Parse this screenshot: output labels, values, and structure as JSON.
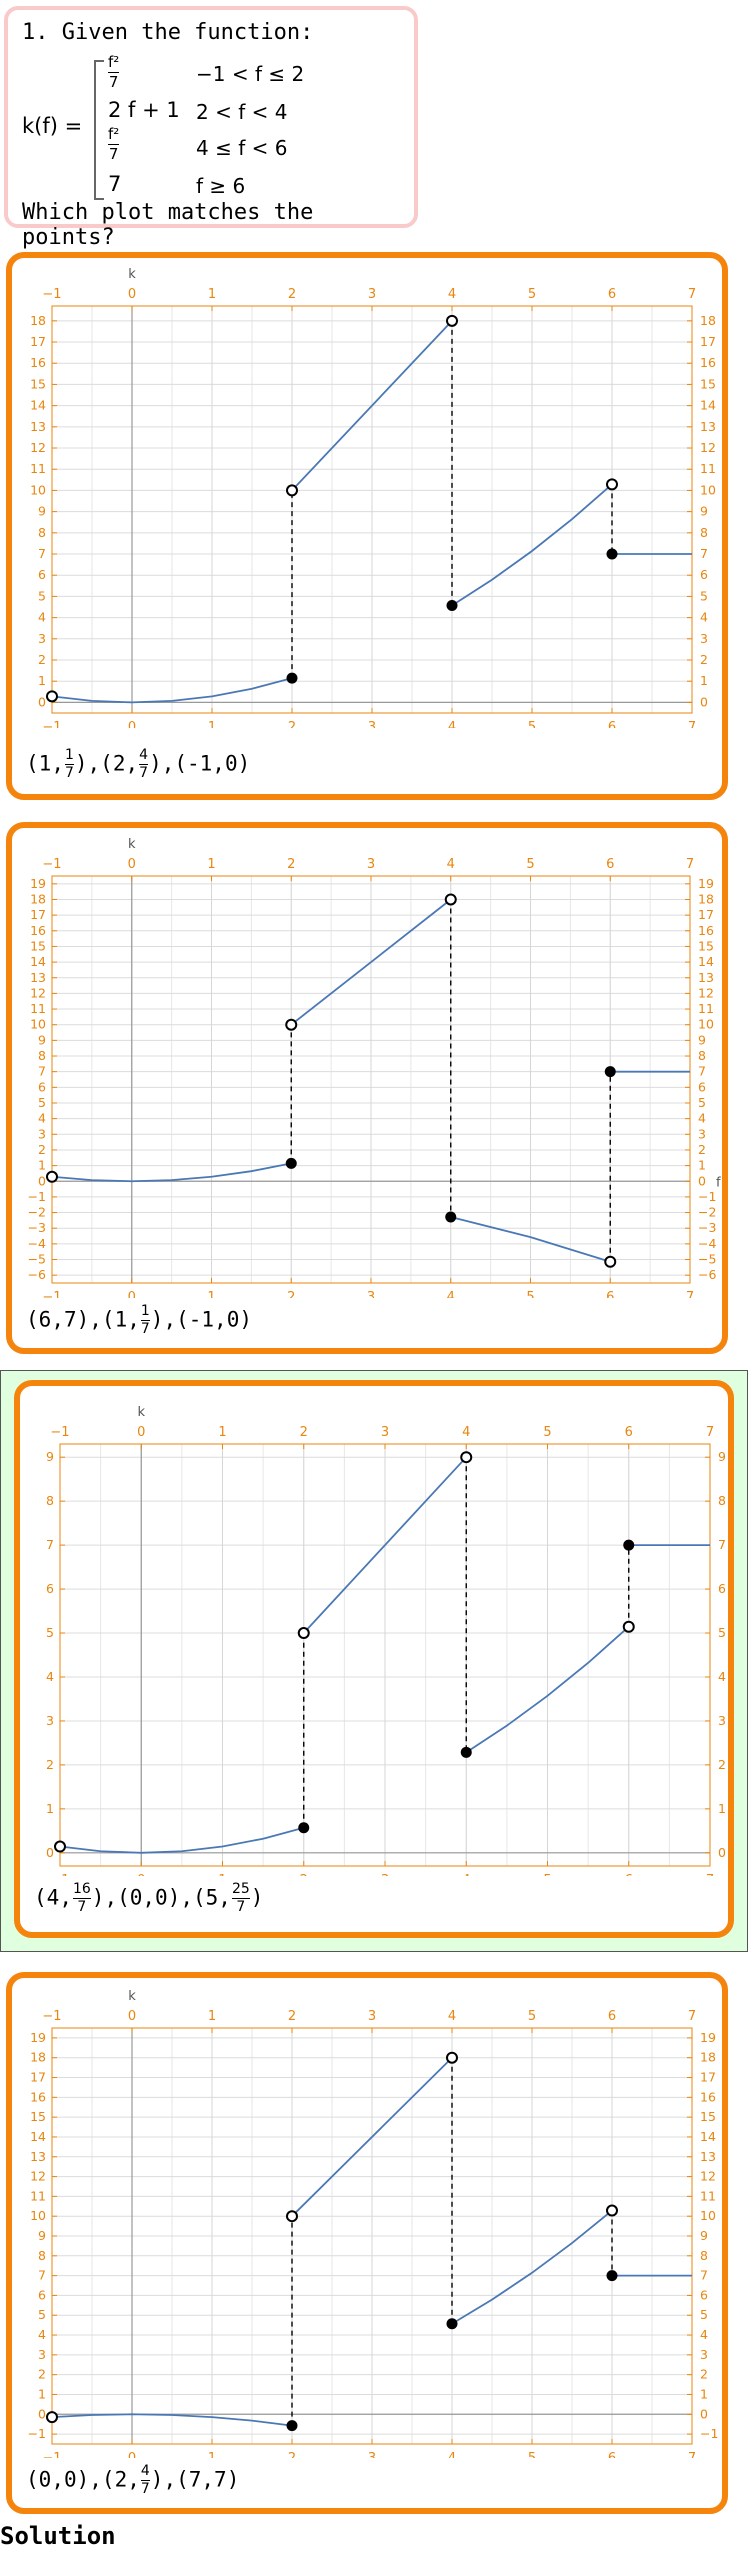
{
  "question": {
    "title": "1. Given the function:",
    "lhs": "k(f) =",
    "cases": [
      {
        "expr_num": "f²",
        "expr_den": "7",
        "cond": "−1 < f ≤ 2"
      },
      {
        "expr": "2 f + 1",
        "cond": "2 < f < 4"
      },
      {
        "expr_num": "f²",
        "expr_den": "7",
        "cond": "4 ≤ f < 6"
      },
      {
        "expr": "7",
        "cond": "f ≥ 6"
      }
    ],
    "prompt": "Which plot matches the points?"
  },
  "solution_label": "Solution",
  "options": [
    {
      "points_label": [
        [
          "1",
          "1",
          "7"
        ],
        [
          "2",
          "4",
          "7"
        ],
        [
          "-1",
          "0",
          null
        ]
      ],
      "correct": false
    },
    {
      "points_label": [
        [
          "6",
          "7",
          null
        ],
        [
          "1",
          "1",
          "7"
        ],
        [
          "-1",
          "0",
          null
        ]
      ],
      "correct": false
    },
    {
      "points_label": [
        [
          "4",
          "16",
          "7"
        ],
        [
          "0",
          "0",
          null
        ],
        [
          "5",
          "25",
          "7"
        ]
      ],
      "correct": true
    },
    {
      "points_label": [
        [
          "0",
          "0",
          null
        ],
        [
          "2",
          "4",
          "7"
        ],
        [
          "7",
          "7",
          null
        ]
      ],
      "correct": false
    }
  ],
  "chart_data": [
    {
      "type": "line",
      "xlabel": "",
      "ylabel": "k",
      "xlim": [
        -1,
        7
      ],
      "ylim": [
        -0.5,
        18.7
      ],
      "xticks": [
        -1,
        0,
        1,
        2,
        3,
        4,
        5,
        6,
        7
      ],
      "yticks": [
        0,
        1,
        2,
        3,
        4,
        5,
        6,
        7,
        8,
        9,
        10,
        11,
        12,
        13,
        14,
        15,
        16,
        17,
        18
      ],
      "segments": [
        {
          "kind": "curve",
          "x": [
            -1,
            -0.5,
            0,
            0.5,
            1,
            1.5,
            2
          ],
          "y": [
            0.286,
            0.071,
            0,
            0.071,
            0.286,
            0.643,
            1.143
          ]
        },
        {
          "kind": "line",
          "x": [
            2,
            4
          ],
          "y": [
            10,
            18
          ]
        },
        {
          "kind": "curve",
          "x": [
            4,
            4.5,
            5,
            5.5,
            6
          ],
          "y": [
            4.571,
            5.786,
            7.143,
            8.643,
            10.286
          ]
        },
        {
          "kind": "line",
          "x": [
            6,
            7
          ],
          "y": [
            7,
            7
          ]
        }
      ],
      "open_points": [
        [
          -1,
          0.286
        ],
        [
          4,
          18
        ],
        [
          6,
          10.286
        ],
        [
          2,
          10
        ]
      ],
      "closed_points": [
        [
          2,
          1.143
        ],
        [
          4,
          4.571
        ],
        [
          6,
          7
        ]
      ],
      "dashed": [
        [
          [
            2,
            1.143
          ],
          [
            2,
            10
          ]
        ],
        [
          [
            4,
            18
          ],
          [
            4,
            4.571
          ]
        ],
        [
          [
            6,
            10.286
          ],
          [
            6,
            7
          ]
        ]
      ]
    },
    {
      "type": "line",
      "xlabel": "f",
      "ylabel": "k",
      "xlim": [
        -1,
        7
      ],
      "ylim": [
        -6.5,
        19.5
      ],
      "xticks": [
        -1,
        0,
        1,
        2,
        3,
        4,
        5,
        6,
        7
      ],
      "yticks": [
        -6,
        -5,
        -4,
        -3,
        -2,
        -1,
        0,
        1,
        2,
        3,
        4,
        5,
        6,
        7,
        8,
        9,
        10,
        11,
        12,
        13,
        14,
        15,
        16,
        17,
        18,
        19
      ],
      "segments": [
        {
          "kind": "curve",
          "x": [
            -1,
            -0.5,
            0,
            0.5,
            1,
            1.5,
            2
          ],
          "y": [
            0.286,
            0.071,
            0,
            0.071,
            0.286,
            0.643,
            1.143
          ]
        },
        {
          "kind": "line",
          "x": [
            2,
            4
          ],
          "y": [
            10,
            18
          ]
        },
        {
          "kind": "curve",
          "x": [
            4,
            5,
            6
          ],
          "y": [
            -2.286,
            -3.571,
            -5.143
          ]
        },
        {
          "kind": "line",
          "x": [
            6,
            7
          ],
          "y": [
            7,
            7
          ]
        }
      ],
      "open_points": [
        [
          -1,
          0.286
        ],
        [
          2,
          10
        ],
        [
          4,
          18
        ],
        [
          6,
          -5.143
        ]
      ],
      "closed_points": [
        [
          2,
          1.143
        ],
        [
          4,
          -2.286
        ],
        [
          6,
          7
        ]
      ],
      "dashed": [
        [
          [
            2,
            1.143
          ],
          [
            2,
            10
          ]
        ],
        [
          [
            4,
            18
          ],
          [
            4,
            -2.286
          ]
        ],
        [
          [
            6,
            -5.143
          ],
          [
            6,
            7
          ]
        ]
      ]
    },
    {
      "type": "line",
      "xlabel": "",
      "ylabel": "k",
      "xlim": [
        -1,
        7
      ],
      "ylim": [
        -0.3,
        9.3
      ],
      "xticks": [
        -1,
        0,
        1,
        2,
        3,
        4,
        5,
        6,
        7
      ],
      "yticks": [
        0,
        1,
        2,
        3,
        4,
        5,
        6,
        7,
        8,
        9
      ],
      "segments": [
        {
          "kind": "curve",
          "x": [
            -1,
            -0.5,
            0,
            0.5,
            1,
            1.5,
            2
          ],
          "y": [
            0.143,
            0.036,
            0,
            0.036,
            0.143,
            0.321,
            0.571
          ]
        },
        {
          "kind": "line",
          "x": [
            2,
            4
          ],
          "y": [
            5,
            9
          ]
        },
        {
          "kind": "curve",
          "x": [
            4,
            4.5,
            5,
            5.5,
            6
          ],
          "y": [
            2.286,
            2.893,
            3.571,
            4.321,
            5.143
          ]
        },
        {
          "kind": "line",
          "x": [
            6,
            7
          ],
          "y": [
            7,
            7
          ]
        }
      ],
      "open_points": [
        [
          -1,
          0.143
        ],
        [
          2,
          5
        ],
        [
          4,
          9
        ],
        [
          6,
          5.143
        ]
      ],
      "closed_points": [
        [
          2,
          0.571
        ],
        [
          4,
          2.286
        ],
        [
          6,
          7
        ]
      ],
      "dashed": [
        [
          [
            2,
            0.571
          ],
          [
            2,
            5
          ]
        ],
        [
          [
            4,
            9
          ],
          [
            4,
            2.286
          ]
        ],
        [
          [
            6,
            5.143
          ],
          [
            6,
            7
          ]
        ]
      ]
    },
    {
      "type": "line",
      "xlabel": "",
      "ylabel": "k",
      "xlim": [
        -1,
        7
      ],
      "ylim": [
        -1.5,
        19.5
      ],
      "xticks": [
        -1,
        0,
        1,
        2,
        3,
        4,
        5,
        6,
        7
      ],
      "yticks": [
        -1,
        0,
        1,
        2,
        3,
        4,
        5,
        6,
        7,
        8,
        9,
        10,
        11,
        12,
        13,
        14,
        15,
        16,
        17,
        18,
        19
      ],
      "segments": [
        {
          "kind": "curve",
          "x": [
            -1,
            -0.5,
            0,
            0.5,
            1,
            1.5,
            2
          ],
          "y": [
            -0.143,
            -0.036,
            0,
            -0.036,
            -0.143,
            -0.321,
            -0.571
          ]
        },
        {
          "kind": "line",
          "x": [
            2,
            4
          ],
          "y": [
            10,
            18
          ]
        },
        {
          "kind": "curve",
          "x": [
            4,
            4.5,
            5,
            5.5,
            6
          ],
          "y": [
            4.571,
            5.786,
            7.143,
            8.643,
            10.286
          ]
        },
        {
          "kind": "line",
          "x": [
            6,
            7
          ],
          "y": [
            7,
            7
          ]
        }
      ],
      "open_points": [
        [
          -1,
          -0.143
        ],
        [
          2,
          10
        ],
        [
          4,
          18
        ],
        [
          6,
          10.286
        ]
      ],
      "closed_points": [
        [
          2,
          -0.571
        ],
        [
          4,
          4.571
        ],
        [
          6,
          7
        ]
      ],
      "dashed": [
        [
          [
            2,
            -0.571
          ],
          [
            2,
            10
          ]
        ],
        [
          [
            4,
            18
          ],
          [
            4,
            4.571
          ]
        ],
        [
          [
            6,
            10.286
          ],
          [
            6,
            7
          ]
        ]
      ]
    }
  ]
}
